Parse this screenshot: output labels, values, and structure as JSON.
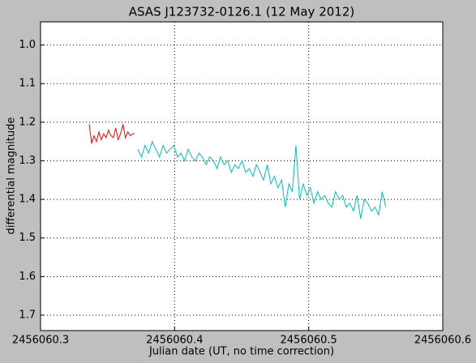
{
  "chart_data": {
    "type": "line",
    "title": "ASAS J123732-0126.1 (12 May 2012)",
    "x_label": "Julian date (UT, no time correction)",
    "y_label": "differential magnitude",
    "xlim": [
      2456060.3,
      2456060.6
    ],
    "xticks": [
      2456060.3,
      2456060.4,
      2456060.5,
      2456060.6
    ],
    "ylim": [
      0.94,
      1.74
    ],
    "y_inverted": true,
    "yticks": [
      {
        "value": 1,
        "label": "1.0"
      },
      1.1,
      1.2,
      1.3,
      1.4,
      1.5,
      1.6,
      1.7
    ],
    "grid": true,
    "series": [
      {
        "color": "#ff0000",
        "x": [
          2456060.3363,
          2456060.3381,
          2456060.3399,
          2456060.3417,
          2456060.3435,
          2456060.3453,
          2456060.3471,
          2456060.3489,
          2456060.3507,
          2456060.3525,
          2456060.3543,
          2456060.3561,
          2456060.3579,
          2456060.3597,
          2456060.3615,
          2456060.3633,
          2456060.3651,
          2456060.3669,
          2456060.3687,
          2456060.3702
        ],
        "values": [
          1.205,
          1.255,
          1.235,
          1.25,
          1.225,
          1.245,
          1.23,
          1.24,
          1.22,
          1.235,
          1.24,
          1.215,
          1.245,
          1.23,
          1.205,
          1.24,
          1.225,
          1.235,
          1.23,
          1.23
        ]
      },
      {
        "color": "#00bfbf",
        "x": [
          2456060.3726,
          2456060.3753,
          2456060.378,
          2456060.3806,
          2456060.3833,
          2456060.386,
          2456060.3887,
          2456060.3914,
          2456060.394,
          2456060.3967,
          2456060.3994,
          2456060.4021,
          2456060.4048,
          2456060.4074,
          2456060.4101,
          2456060.4128,
          2456060.4155,
          2456060.4182,
          2456060.4208,
          2456060.4235,
          2456060.4262,
          2456060.4289,
          2456060.4316,
          2456060.4342,
          2456060.4369,
          2456060.4396,
          2456060.4423,
          2456060.445,
          2456060.4476,
          2456060.4503,
          2456060.453,
          2456060.4557,
          2456060.4584,
          2456060.461,
          2456060.4637,
          2456060.4664,
          2456060.4691,
          2456060.4718,
          2456060.4744,
          2456060.4771,
          2456060.4798,
          2456060.4825,
          2456060.4852,
          2456060.4878,
          2456060.4905,
          2456060.4932,
          2456060.4959,
          2456060.4986,
          2456060.5012,
          2456060.5039,
          2456060.5066,
          2456060.5093,
          2456060.512,
          2456060.5146,
          2456060.5173,
          2456060.52,
          2456060.5227,
          2456060.5254,
          2456060.528,
          2456060.5307,
          2456060.5334,
          2456060.5361,
          2456060.5388,
          2456060.5414,
          2456060.5441,
          2456060.5468,
          2456060.5495,
          2456060.5522,
          2456060.5548,
          2456060.5575
        ],
        "values": [
          1.27,
          1.29,
          1.26,
          1.28,
          1.25,
          1.27,
          1.29,
          1.26,
          1.28,
          1.27,
          1.26,
          1.29,
          1.28,
          1.3,
          1.27,
          1.29,
          1.3,
          1.28,
          1.29,
          1.31,
          1.29,
          1.3,
          1.32,
          1.29,
          1.31,
          1.3,
          1.33,
          1.31,
          1.32,
          1.3,
          1.33,
          1.32,
          1.34,
          1.31,
          1.33,
          1.35,
          1.31,
          1.36,
          1.34,
          1.37,
          1.35,
          1.42,
          1.36,
          1.38,
          1.26,
          1.4,
          1.36,
          1.39,
          1.37,
          1.41,
          1.38,
          1.4,
          1.39,
          1.41,
          1.42,
          1.38,
          1.4,
          1.39,
          1.42,
          1.41,
          1.43,
          1.39,
          1.45,
          1.4,
          1.41,
          1.43,
          1.42,
          1.44,
          1.38,
          1.42
        ]
      }
    ]
  }
}
